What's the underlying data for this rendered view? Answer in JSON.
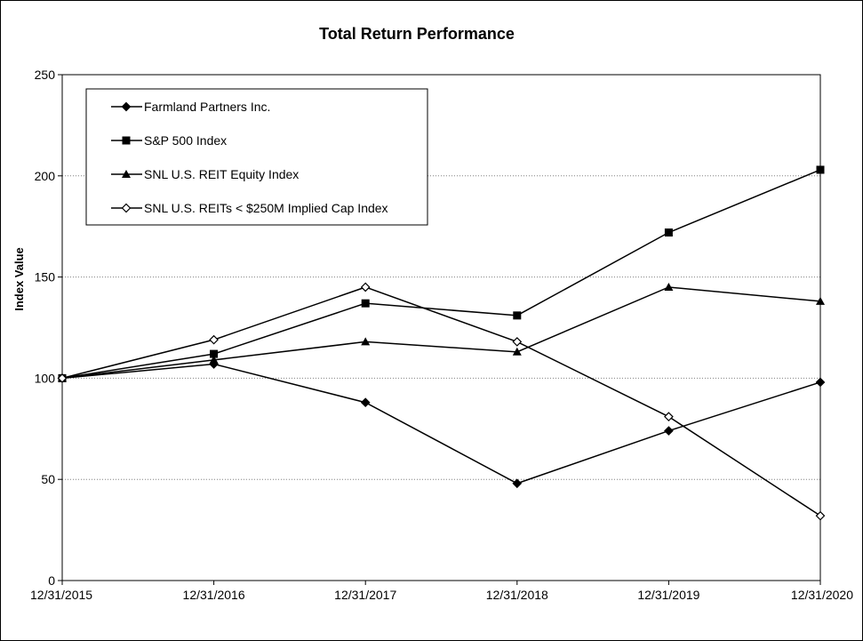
{
  "chart_data": {
    "type": "line",
    "title": "Total Return Performance",
    "xlabel": "",
    "ylabel": "Index Value",
    "categories": [
      "12/31/2015",
      "12/31/2016",
      "12/31/2017",
      "12/31/2018",
      "12/31/2019",
      "12/31/2020"
    ],
    "ylim": [
      0,
      250
    ],
    "yticks": [
      0,
      50,
      100,
      150,
      200,
      250
    ],
    "grid": "horizontal dotted",
    "legend_position": "top-left",
    "series": [
      {
        "name": "Farmland Partners Inc.",
        "marker": "diamond",
        "values": [
          100,
          107,
          88,
          48,
          74,
          98
        ]
      },
      {
        "name": "S&P 500 Index",
        "marker": "square",
        "values": [
          100,
          112,
          137,
          131,
          172,
          203
        ]
      },
      {
        "name": "SNL U.S. REIT Equity Index",
        "marker": "triangle",
        "values": [
          100,
          109,
          118,
          113,
          145,
          138
        ]
      },
      {
        "name": "SNL U.S. REITs < $250M Implied Cap Index",
        "marker": "open-diamond",
        "values": [
          100,
          119,
          145,
          118,
          81,
          32
        ]
      }
    ],
    "colors": {
      "line": "#000000",
      "grid": "#808080",
      "background": "#ffffff"
    }
  }
}
